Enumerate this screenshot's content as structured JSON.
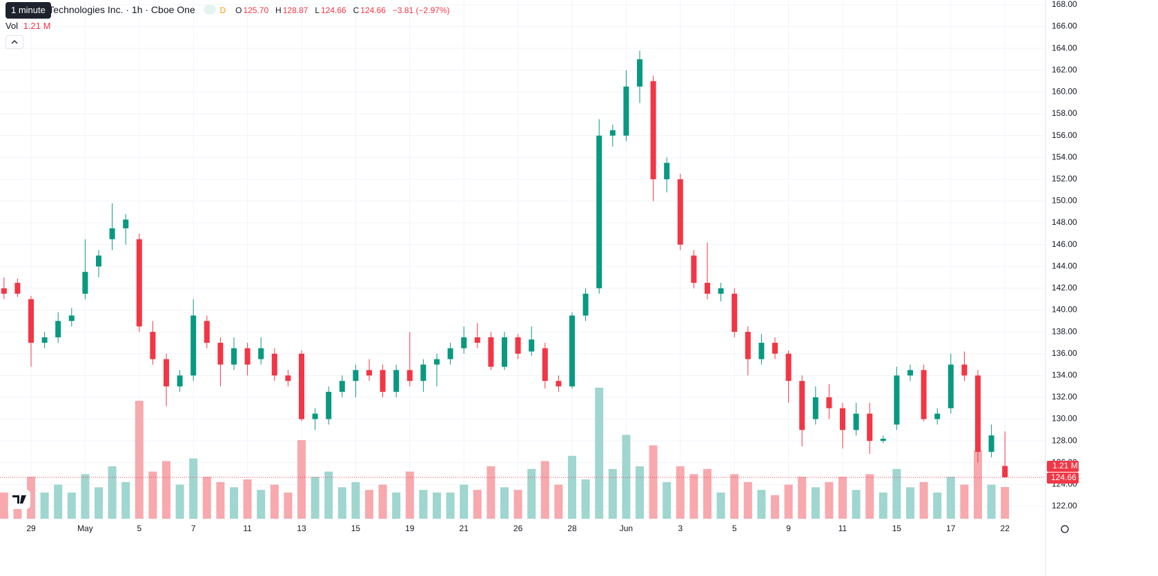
{
  "chart_data": {
    "type": "candlestick",
    "categories": [
      null,
      null,
      "29",
      null,
      null,
      null,
      "May",
      null,
      null,
      null,
      "5",
      null,
      null,
      null,
      "7",
      null,
      null,
      null,
      "11",
      null,
      null,
      null,
      "13",
      null,
      null,
      null,
      "15",
      null,
      null,
      null,
      "19",
      null,
      null,
      null,
      "21",
      null,
      null,
      null,
      "26",
      null,
      null,
      null,
      "28",
      null,
      null,
      null,
      "Jun",
      null,
      null,
      null,
      "3",
      null,
      null,
      null,
      "5",
      null,
      null,
      null,
      "9",
      null,
      null,
      null,
      "11",
      null,
      null,
      null,
      "15",
      null,
      null,
      null,
      "17",
      null,
      null,
      null,
      "22"
    ],
    "open": [
      142.0,
      142.5,
      141.0,
      137.0,
      137.5,
      139.0,
      141.5,
      144.0,
      146.5,
      147.5,
      146.5,
      138.0,
      135.5,
      133.0,
      134.0,
      139.0,
      137.0,
      135.0,
      136.5,
      135.5,
      136.0,
      134.0,
      136.0,
      130.0,
      130.0,
      132.5,
      133.5,
      134.5,
      134.5,
      132.5,
      134.5,
      133.5,
      135.0,
      135.5,
      136.5,
      137.5,
      137.5,
      134.8,
      137.5,
      136.2,
      136.5,
      133.5,
      133.0,
      139.5,
      142.0,
      156.0,
      156.0,
      160.5,
      161.0,
      152.0,
      152.0,
      145.0,
      142.5,
      141.5,
      141.5,
      138.0,
      135.5,
      137.0,
      136.0,
      133.5,
      130.0,
      132.0,
      131.0,
      129.0,
      130.5,
      128.0,
      129.5,
      134.0,
      134.5,
      130.0,
      131.0,
      135.0,
      134.0,
      127.0,
      125.7
    ],
    "high": [
      143.0,
      142.9,
      141.3,
      138.0,
      139.8,
      140.2,
      146.5,
      145.5,
      149.8,
      148.8,
      147.0,
      139.0,
      136.0,
      134.5,
      141.0,
      139.5,
      137.5,
      137.5,
      137.0,
      137.5,
      136.5,
      134.5,
      136.3,
      131.0,
      133.0,
      134.0,
      135.0,
      135.5,
      135.0,
      135.0,
      138.0,
      135.5,
      136.0,
      137.0,
      138.5,
      138.8,
      138.0,
      138.0,
      137.8,
      138.5,
      137.0,
      134.0,
      139.8,
      142.0,
      157.5,
      157.0,
      162.0,
      163.8,
      161.5,
      154.0,
      152.5,
      145.5,
      146.2,
      142.5,
      142.0,
      138.5,
      137.8,
      137.5,
      136.3,
      134.0,
      133.0,
      133.2,
      131.5,
      131.5,
      131.5,
      128.5,
      134.8,
      135.0,
      135.0,
      131.0,
      136.0,
      136.2,
      134.5,
      129.5,
      128.87
    ],
    "low": [
      141.0,
      141.2,
      134.8,
      136.5,
      137.0,
      138.5,
      141.0,
      143.0,
      145.5,
      146.0,
      138.0,
      135.0,
      131.2,
      132.5,
      133.5,
      136.5,
      133.0,
      134.5,
      134.0,
      135.0,
      133.5,
      133.0,
      129.8,
      129.0,
      129.5,
      132.0,
      132.0,
      133.5,
      132.0,
      132.0,
      133.0,
      132.5,
      133.0,
      135.0,
      136.0,
      136.5,
      134.5,
      134.5,
      135.5,
      135.8,
      132.8,
      132.5,
      132.8,
      139.0,
      141.5,
      155.0,
      155.5,
      159.0,
      150.0,
      150.8,
      145.5,
      142.0,
      141.0,
      140.8,
      137.5,
      134.0,
      135.0,
      135.5,
      131.5,
      127.5,
      129.5,
      130.0,
      127.3,
      128.5,
      126.8,
      127.8,
      129.0,
      133.5,
      129.8,
      129.5,
      130.5,
      133.5,
      126.0,
      126.5,
      124.66
    ],
    "close": [
      141.5,
      141.5,
      137.0,
      137.5,
      139.0,
      139.5,
      143.5,
      145.0,
      147.5,
      148.3,
      138.5,
      135.5,
      133.0,
      134.0,
      139.5,
      137.0,
      135.0,
      136.5,
      135.0,
      136.5,
      134.0,
      133.5,
      130.0,
      130.5,
      132.5,
      133.5,
      134.5,
      134.0,
      132.5,
      134.5,
      133.5,
      135.0,
      135.5,
      136.5,
      137.5,
      137.0,
      134.8,
      137.5,
      136.0,
      137.3,
      133.5,
      133.0,
      139.5,
      141.5,
      156.0,
      156.5,
      160.5,
      163.0,
      152.0,
      153.5,
      146.0,
      142.5,
      141.5,
      142.0,
      138.0,
      135.5,
      137.0,
      136.0,
      133.5,
      129.0,
      132.0,
      131.0,
      129.0,
      130.5,
      128.0,
      128.2,
      134.0,
      134.5,
      130.0,
      130.5,
      135.0,
      134.0,
      127.0,
      128.5,
      124.66
    ],
    "volume": [
      1.0,
      0.9,
      1.6,
      1.0,
      1.3,
      1.0,
      1.7,
      1.2,
      2.0,
      1.4,
      4.5,
      1.8,
      2.2,
      1.3,
      2.3,
      1.6,
      1.4,
      1.2,
      1.5,
      1.1,
      1.3,
      1.0,
      3.0,
      1.6,
      1.8,
      1.2,
      1.4,
      1.1,
      1.3,
      1.0,
      1.8,
      1.1,
      1.0,
      1.0,
      1.3,
      1.1,
      2.0,
      1.2,
      1.1,
      1.9,
      2.2,
      1.3,
      2.4,
      1.5,
      5.0,
      1.9,
      3.2,
      2.0,
      2.8,
      1.4,
      2.0,
      1.7,
      1.9,
      1.0,
      1.7,
      1.4,
      1.1,
      0.9,
      1.3,
      1.6,
      1.2,
      1.4,
      1.6,
      1.1,
      1.7,
      1.0,
      1.9,
      1.2,
      1.4,
      1.0,
      1.6,
      1.3,
      2.6,
      1.3,
      1.21
    ],
    "ylim": [
      120.86,
      168.44
    ],
    "yticks": [
      {
        "value": 122,
        "label": "122.00"
      },
      {
        "value": 124,
        "label": "124.00"
      },
      {
        "value": 126,
        "label": "126.00"
      },
      {
        "value": 128,
        "label": "128.00"
      },
      {
        "value": 130,
        "label": "130.00"
      },
      {
        "value": 132,
        "label": "132.00"
      },
      {
        "value": 134,
        "label": "134.00"
      },
      {
        "value": 136,
        "label": "136.00"
      },
      {
        "value": 138,
        "label": "138.00"
      },
      {
        "value": 140,
        "label": "140.00"
      },
      {
        "value": 142,
        "label": "142.00"
      },
      {
        "value": 144,
        "label": "144.00"
      },
      {
        "value": 146,
        "label": "146.00"
      },
      {
        "value": 148,
        "label": "148.00"
      },
      {
        "value": 150,
        "label": "150.00"
      },
      {
        "value": 152,
        "label": "152.00"
      },
      {
        "value": 154,
        "label": "154.00"
      },
      {
        "value": 156,
        "label": "156.00"
      },
      {
        "value": 158,
        "label": "158.00"
      },
      {
        "value": 160,
        "label": "160.00"
      },
      {
        "value": 162,
        "label": "162.00"
      },
      {
        "value": 164,
        "label": "164.00"
      },
      {
        "value": 166,
        "label": "166.00"
      },
      {
        "value": 168,
        "label": "168.00"
      }
    ],
    "colors": {
      "up": "#089981",
      "down": "#f23645",
      "up_volume": "#9fd6cf",
      "down_volume": "#f7a9ae"
    },
    "grid": true
  },
  "header": {
    "tooltip": "1 minute",
    "title": "r Technologies Inc. · 1h · Cboe One",
    "interval": "D",
    "open_label": "O",
    "open": "125.70",
    "high_label": "H",
    "high": "128.87",
    "low_label": "L",
    "low": "124.66",
    "close_label": "C",
    "close": "124.66",
    "change": "−3.81 (−2.97%)",
    "volume_label": "Vol",
    "volume": "1.21 M"
  }
}
